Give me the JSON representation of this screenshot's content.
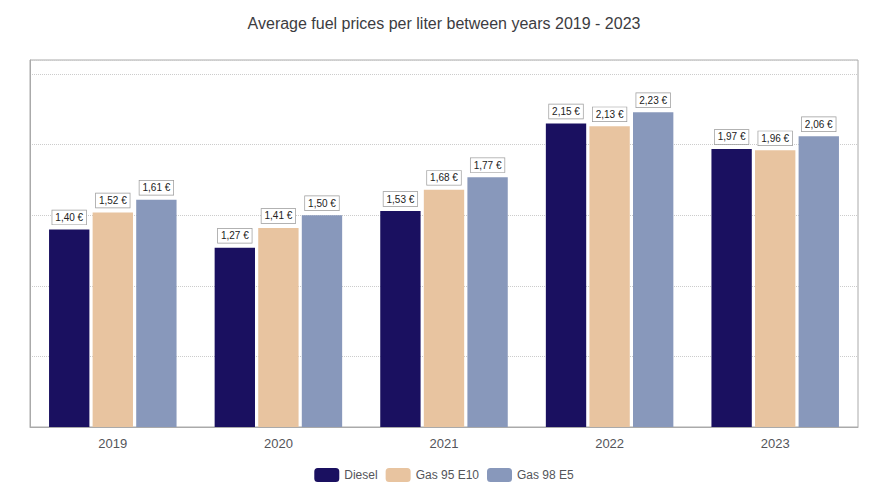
{
  "chart_data": {
    "type": "bar",
    "title": "Average fuel prices per liter between years 2019 - 2023",
    "categories": [
      "2019",
      "2020",
      "2021",
      "2022",
      "2023"
    ],
    "series": [
      {
        "name": "Diesel",
        "color": "#1a1060",
        "values": [
          1.4,
          1.27,
          1.53,
          2.15,
          1.97
        ],
        "value_labels": [
          "1,40 €",
          "1,27 €",
          "1,53 €",
          "2,15 €",
          "1,97 €"
        ]
      },
      {
        "name": "Gas 95 E10",
        "color": "#e8c4a0",
        "values": [
          1.52,
          1.41,
          1.68,
          2.13,
          1.96
        ],
        "value_labels": [
          "1,52 €",
          "1,41 €",
          "1,68 €",
          "2,13 €",
          "1,96 €"
        ]
      },
      {
        "name": "Gas 98 E5",
        "color": "#8898bb",
        "values": [
          1.61,
          1.5,
          1.77,
          2.23,
          2.06
        ],
        "value_labels": [
          "1,61 €",
          "1,50 €",
          "1,77 €",
          "2,23 €",
          "2,06 €"
        ]
      }
    ],
    "ylim": [
      0,
      2.6
    ],
    "yticks": [
      0,
      0.5,
      1,
      1.5,
      2,
      2.5
    ],
    "grid": true,
    "legend": "bottom",
    "data_labels": true,
    "tick_labels": "x"
  }
}
